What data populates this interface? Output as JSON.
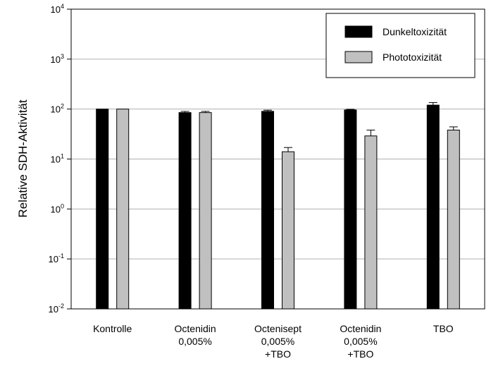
{
  "chart_data": {
    "type": "bar",
    "title": "",
    "xlabel": "",
    "ylabel": "Relative SDH-Aktivität",
    "yscale": "log",
    "ylim": [
      0.01,
      10000
    ],
    "grid": "horizontal",
    "legend_position": "top-right",
    "y_ticks": [
      {
        "value": 10000,
        "base": "10",
        "exp": "4"
      },
      {
        "value": 1000,
        "base": "10",
        "exp": "3"
      },
      {
        "value": 100,
        "base": "10",
        "exp": "2"
      },
      {
        "value": 10,
        "base": "10",
        "exp": "1"
      },
      {
        "value": 1,
        "base": "10",
        "exp": "0"
      },
      {
        "value": 0.1,
        "base": "10",
        "exp": "-1"
      },
      {
        "value": 0.01,
        "base": "10",
        "exp": "-2"
      }
    ],
    "categories": [
      [
        "Kontrolle"
      ],
      [
        "Octenidin",
        "0,005%"
      ],
      [
        "Octenisept",
        "0,005%",
        "+TBO"
      ],
      [
        "Octenidin",
        "0,005%",
        "+TBO"
      ],
      [
        "TBO"
      ]
    ],
    "series": [
      {
        "name": "Dunkeltoxizität",
        "color": "#000000",
        "values": [
          100,
          85,
          90,
          96,
          120
        ],
        "errors": [
          0,
          5,
          5,
          3,
          15
        ]
      },
      {
        "name": "Phototoxizität",
        "color": "#c0c0c0",
        "values": [
          100,
          85,
          14,
          29,
          38
        ],
        "errors": [
          0,
          5,
          3,
          9,
          6
        ]
      }
    ]
  }
}
